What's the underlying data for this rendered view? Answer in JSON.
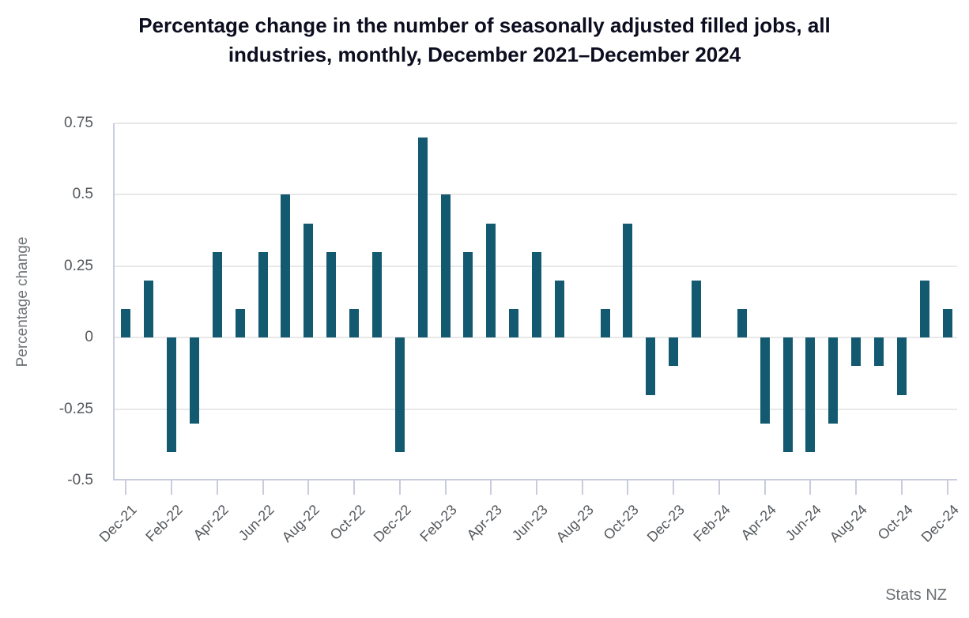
{
  "title_lines": [
    "Percentage change in the number of seasonally adjusted filled jobs, all",
    "industries, monthly, December 2021–December 2024"
  ],
  "source_label": "Stats NZ",
  "colors": {
    "bar": "#135a70",
    "gridline": "#e8e8e8",
    "axis_line": "#c9ccdd",
    "tick_text": "#54585c",
    "title_text": "#0c0d1f",
    "source_text": "#6d7175"
  },
  "chart_data": {
    "type": "bar",
    "title": "Percentage change in the number of seasonally adjusted filled jobs, all industries, monthly, December 2021–December 2024",
    "xlabel": "",
    "ylabel": "Percentage change",
    "x": [
      "Dec-21",
      "Jan-22",
      "Feb-22",
      "Mar-22",
      "Apr-22",
      "May-22",
      "Jun-22",
      "Jul-22",
      "Aug-22",
      "Sep-22",
      "Oct-22",
      "Nov-22",
      "Dec-22",
      "Jan-23",
      "Feb-23",
      "Mar-23",
      "Apr-23",
      "May-23",
      "Jun-23",
      "Jul-23",
      "Aug-23",
      "Sep-23",
      "Oct-23",
      "Nov-23",
      "Dec-23",
      "Jan-24",
      "Feb-24",
      "Mar-24",
      "Apr-24",
      "May-24",
      "Jun-24",
      "Jul-24",
      "Aug-24",
      "Sep-24",
      "Oct-24",
      "Nov-24",
      "Dec-24"
    ],
    "values": [
      0.1,
      0.2,
      -0.4,
      -0.3,
      0.3,
      0.1,
      0.3,
      0.5,
      0.4,
      0.3,
      0.1,
      0.3,
      -0.4,
      0.7,
      0.5,
      0.3,
      0.4,
      0.1,
      0.3,
      0.2,
      0.0,
      0.1,
      0.4,
      -0.2,
      -0.1,
      0.2,
      0.0,
      0.1,
      -0.3,
      -0.4,
      -0.4,
      -0.3,
      -0.1,
      -0.1,
      -0.2,
      0.2,
      0.1
    ],
    "x_tick_labels": [
      "Dec-21",
      "Feb-22",
      "Apr-22",
      "Jun-22",
      "Aug-22",
      "Oct-22",
      "Dec-22",
      "Feb-23",
      "Apr-23",
      "Jun-23",
      "Aug-23",
      "Oct-23",
      "Dec-23",
      "Feb-24",
      "Apr-24",
      "Jun-24",
      "Aug-24",
      "Oct-24",
      "Dec-24"
    ],
    "y_ticks": [
      0.75,
      0.5,
      0.25,
      0,
      -0.25,
      -0.5
    ],
    "y_tick_labels": [
      "0.75",
      "0.5",
      "0.25",
      "0",
      "-0.25",
      "-0.5"
    ],
    "ylim": [
      -0.5,
      0.75
    ],
    "grid": "horizontal",
    "legend": "none"
  }
}
